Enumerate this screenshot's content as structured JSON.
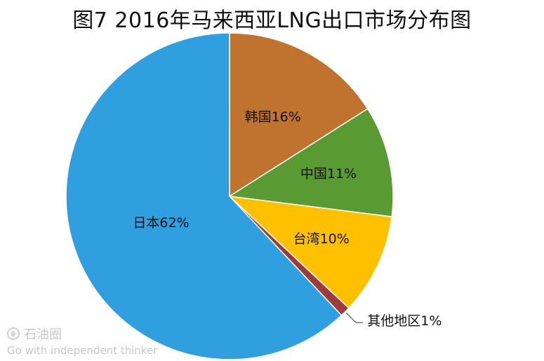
{
  "title": "图7 2016年马来西亚LNG出口市场分布图",
  "chart_data": {
    "type": "pie",
    "title": "图7 2016年马来西亚LNG出口市场分布图",
    "slices": [
      {
        "label": "韩国",
        "value": 16,
        "display": "韩国16%",
        "color": "#C0732E"
      },
      {
        "label": "中国",
        "value": 11,
        "display": "中国11%",
        "color": "#5A9A32"
      },
      {
        "label": "台湾",
        "value": 10,
        "display": "台湾10%",
        "color": "#FFC000"
      },
      {
        "label": "其他地区",
        "value": 1,
        "display": "其他地区1%",
        "color": "#9E3A3A"
      },
      {
        "label": "日本",
        "value": 62,
        "display": "日本62%",
        "color": "#2F9FE0"
      }
    ],
    "start": "top",
    "direction": "clockwise"
  },
  "watermark": {
    "brand": "石油圈",
    "tagline": "Go with independent thinker"
  }
}
